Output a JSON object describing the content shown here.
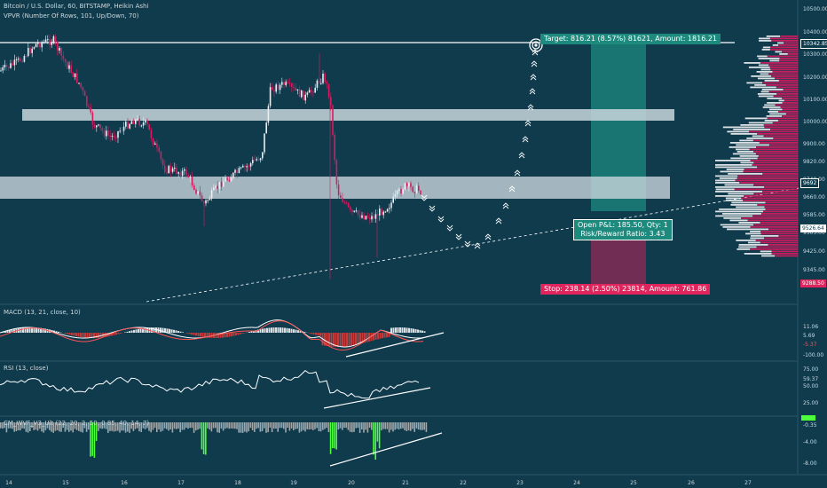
{
  "header": {
    "title": "Bitcoin / U.S. Dollar, 60, BITSTAMP, Heikin Ashi",
    "indicator": "VPVR (Number Of Rows, 101, Up/Down, 70)"
  },
  "panes": {
    "macd_title": "MACD (13, 21, close, 10)",
    "rsi_title": "RSI (13, close)",
    "cm_title": "CM_WVF_V3_Ult (22, 20, 2, 50, 0.85, 40, 14, 7)"
  },
  "trade": {
    "target_label": "Target: 816.21 (8.57%) 81621, Amount: 1816.21",
    "stop_label": "Stop: 238.14 (2.50%) 23814, Amount: 761.86",
    "pnl_line1": "Open P&L: 185.50, Qty: 1",
    "pnl_line2": "Risk/Reward Ratio: 3.43"
  },
  "price_axis": {
    "ticks": [
      "10500.00",
      "10400.00",
      "10300.00",
      "10200.00",
      "10100.00",
      "10000.00",
      "9900.00",
      "9820.00",
      "9740.00",
      "9660.00",
      "9585.00",
      "9505.00",
      "9425.00",
      "9345.00"
    ],
    "badges": [
      {
        "text": "10342.85",
        "color": "#ffffff",
        "bg": "#0f3b4d"
      },
      {
        "text": "9692",
        "color": "#ffffff",
        "bg": "#0f3b4d"
      },
      {
        "text": "9526.64",
        "color": "#0f3b4d",
        "bg": "#ffffff"
      },
      {
        "text": "9288.50",
        "color": "#ffffff",
        "bg": "#e0245e"
      }
    ]
  },
  "macd_axis": {
    "ticks": [
      "11.06",
      "5.69",
      "-5.37",
      "-100.00"
    ]
  },
  "rsi_axis": {
    "ticks": [
      "75.00",
      "59.37",
      "50.00",
      "25.00"
    ]
  },
  "cm_axis": {
    "ticks": [
      "-0.35",
      "-4.00",
      "-8.00"
    ]
  },
  "time_axis": {
    "ticks": [
      "14",
      "15",
      "16",
      "17",
      "18",
      "19",
      "20",
      "21",
      "22",
      "23",
      "24",
      "25",
      "26",
      "27"
    ]
  },
  "colors": {
    "up": "#e8eef2",
    "down": "#d81b60",
    "zone": "#c8d6dc",
    "target_zone": "#1e8a7e",
    "stop_zone": "#8a2a56",
    "macd_hist_pos": "#ffffff",
    "macd_hist_neg": "#e53935",
    "cm_green": "#4cff3a",
    "cm_gray": "#a0a8ac"
  },
  "chart_data": {
    "type": "line",
    "title": "Bitcoin / U.S. Dollar, 60, BITSTAMP, Heikin Ashi",
    "x": [
      "14",
      "15",
      "16",
      "17",
      "18",
      "19",
      "20",
      "21"
    ],
    "series": [
      {
        "values": [
          10210,
          10350,
          9880,
          9960,
          9600,
          10260,
          9560,
          9690
        ]
      }
    ],
    "ylim": [
      9288,
      10500
    ],
    "levels": {
      "resistance": 10342.85,
      "zone_upper": [
        10000,
        10030
      ],
      "zone_lower": [
        9660,
        9720
      ],
      "last": 9692,
      "stop": 9288.5,
      "target": 10342.85
    }
  }
}
